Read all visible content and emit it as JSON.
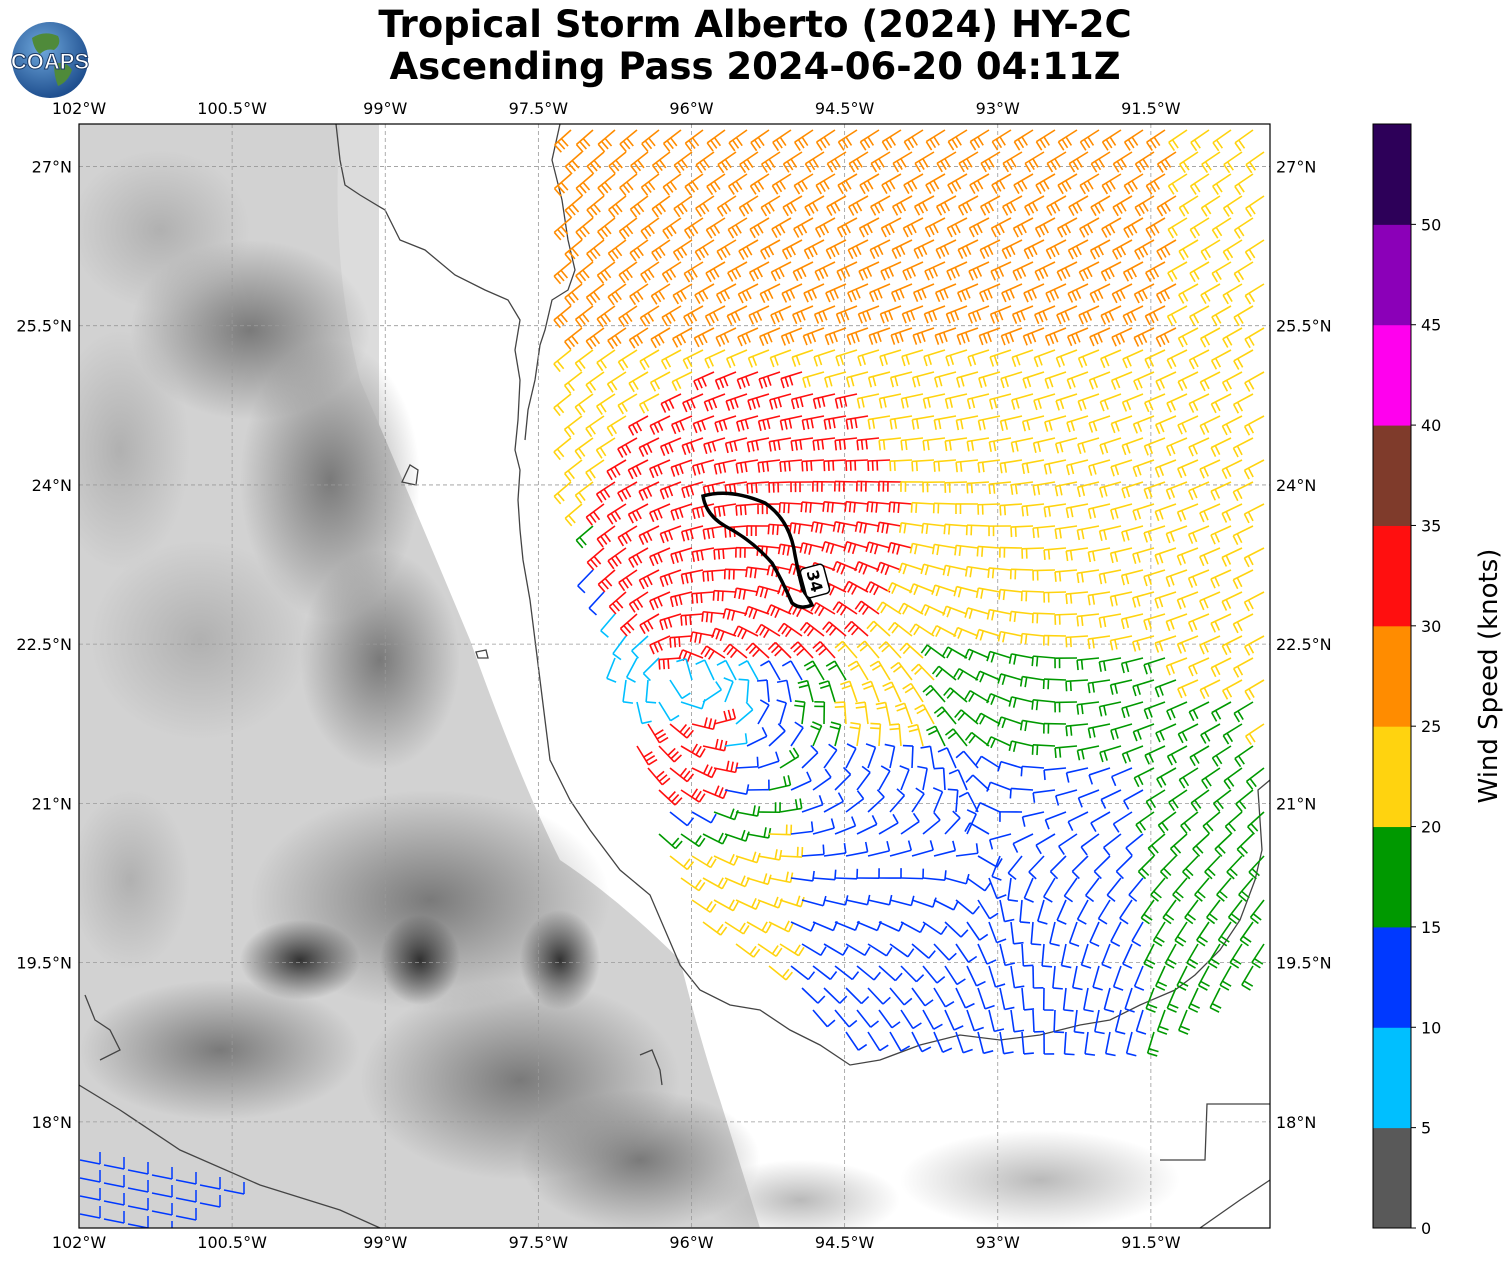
{
  "title": {
    "line1": "Tropical Storm Alberto (2024) HY-2C",
    "line2": "Ascending Pass 2024-06-20 04:11Z"
  },
  "logo": {
    "text": "COAPS",
    "colors": {
      "ocean": "#1f5fa8",
      "land": "#4f8a3a"
    }
  },
  "map": {
    "lon_range": [
      -102.0,
      -90.333
    ],
    "lat_range": [
      17.0,
      27.4
    ],
    "lon_ticks": [
      "102°W",
      "100.5°W",
      "99°W",
      "97.5°W",
      "96°W",
      "94.5°W",
      "93°W",
      "91.5°W"
    ],
    "lat_ticks": [
      "27°N",
      "25.5°N",
      "24°N",
      "22.5°N",
      "21°N",
      "19.5°N",
      "18°N"
    ],
    "gridlines": true,
    "background": "grayscale terrain",
    "storm_center": {
      "lon": -96.2,
      "lat": 22.2
    },
    "contour_label": "34",
    "contour_color": "#000000"
  },
  "colorbar": {
    "label": "Wind Speed (knots)",
    "ticks": [
      "0",
      "5",
      "10",
      "15",
      "20",
      "25",
      "30",
      "35",
      "40",
      "45",
      "50"
    ],
    "colors": [
      "#595959",
      "#00bfff",
      "#0039ff",
      "#009900",
      "#ffd30f",
      "#ff8c00",
      "#ff0f0f",
      "#7f3b2b",
      "#ff00ee",
      "#8b00b8",
      "#2d0059"
    ]
  }
}
